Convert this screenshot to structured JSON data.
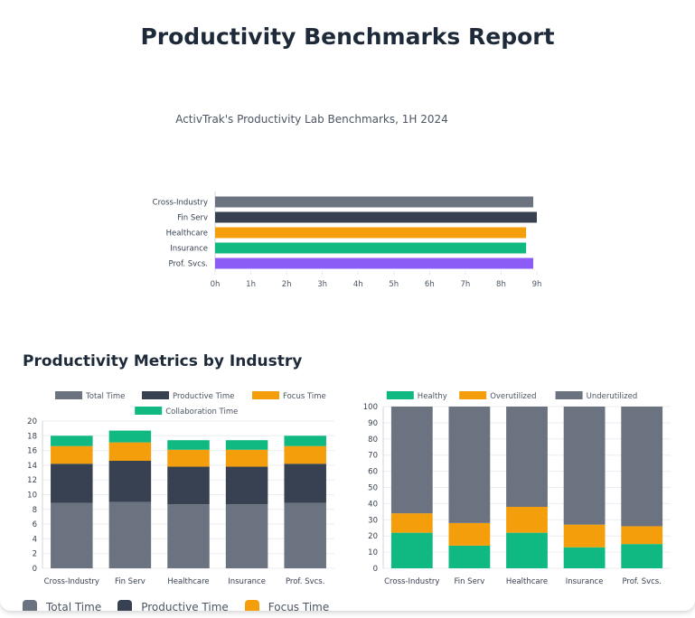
{
  "page": {
    "title": "Productivity Benchmarks Report",
    "section_title": "Productivity Metrics by Industry"
  },
  "colors": {
    "total": "#6b7280",
    "productive": "#374151",
    "focus": "#f59e0b",
    "collaboration": "#10b981",
    "purple": "#8b5cf6",
    "healthy": "#10b981",
    "overutilized": "#f59e0b",
    "underutilized": "#6b7280"
  },
  "bottom_legend": [
    {
      "label": "Total Time",
      "color": "#6b7280"
    },
    {
      "label": "Productive Time",
      "color": "#374151"
    },
    {
      "label": "Focus Time",
      "color": "#f59e0b"
    }
  ],
  "chart_data": [
    {
      "type": "bar",
      "orientation": "horizontal",
      "title": "ActivTrak's Productivity Lab Benchmarks, 1H 2024",
      "categories": [
        "Cross-Industry",
        "Fin Serv",
        "Healthcare",
        "Insurance",
        "Prof. Svcs."
      ],
      "values": [
        8.9,
        9.0,
        8.7,
        8.7,
        8.9
      ],
      "bar_colors": [
        "#6b7280",
        "#374151",
        "#f59e0b",
        "#10b981",
        "#8b5cf6"
      ],
      "x_ticks": [
        "0h",
        "1h",
        "2h",
        "3h",
        "4h",
        "5h",
        "6h",
        "7h",
        "8h",
        "9h"
      ],
      "xlim": [
        0,
        9
      ]
    },
    {
      "type": "bar",
      "stacked": true,
      "categories": [
        "Cross-Industry",
        "Fin Serv",
        "Healthcare",
        "Insurance",
        "Prof. Svcs."
      ],
      "series": [
        {
          "name": "Total Time",
          "color": "#6b7280",
          "values": [
            8.9,
            9.0,
            8.7,
            8.7,
            8.9
          ]
        },
        {
          "name": "Productive Time",
          "color": "#374151",
          "values": [
            5.3,
            5.6,
            5.1,
            5.1,
            5.3
          ]
        },
        {
          "name": "Focus Time",
          "color": "#f59e0b",
          "values": [
            2.4,
            2.5,
            2.3,
            2.3,
            2.4
          ]
        },
        {
          "name": "Collaboration Time",
          "color": "#10b981",
          "values": [
            1.4,
            1.6,
            1.3,
            1.3,
            1.4
          ]
        }
      ],
      "ylim": [
        0,
        20
      ],
      "y_ticks": [
        "0",
        "2",
        "4",
        "6",
        "8",
        "10",
        "12",
        "14",
        "16",
        "18",
        "20"
      ],
      "legend": "top"
    },
    {
      "type": "bar",
      "stacked": true,
      "categories": [
        "Cross-Industry",
        "Fin Serv",
        "Healthcare",
        "Insurance",
        "Prof. Svcs."
      ],
      "series": [
        {
          "name": "Healthy",
          "color": "#10b981",
          "values": [
            22,
            14,
            22,
            13,
            15
          ]
        },
        {
          "name": "Overutilized",
          "color": "#f59e0b",
          "values": [
            12,
            14,
            16,
            14,
            11
          ]
        },
        {
          "name": "Underutilized",
          "color": "#6b7280",
          "values": [
            66,
            72,
            62,
            73,
            74
          ]
        }
      ],
      "ylim": [
        0,
        100
      ],
      "y_ticks": [
        "0",
        "10",
        "20",
        "30",
        "40",
        "50",
        "60",
        "70",
        "80",
        "90",
        "100"
      ],
      "legend": "top"
    }
  ]
}
